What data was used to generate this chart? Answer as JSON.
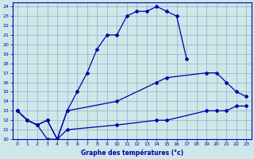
{
  "xlabel": "Graphe des températures (°c)",
  "bg_color": "#cce8e8",
  "grid_color": "#99aacc",
  "line_color": "#0000aa",
  "xlim": [
    -0.5,
    23.5
  ],
  "ylim": [
    10,
    24.4
  ],
  "xticks": [
    0,
    1,
    2,
    3,
    4,
    5,
    6,
    7,
    8,
    9,
    10,
    11,
    12,
    13,
    14,
    15,
    16,
    17,
    18,
    19,
    20,
    21,
    22,
    23
  ],
  "yticks": [
    10,
    11,
    12,
    13,
    14,
    15,
    16,
    17,
    18,
    19,
    20,
    21,
    22,
    23,
    24
  ],
  "line1_x": [
    0,
    1,
    2,
    3,
    4,
    5,
    6,
    7,
    8,
    9,
    10,
    11,
    12,
    13,
    14,
    15,
    16,
    17
  ],
  "line1_y": [
    13,
    12,
    11.5,
    10,
    10,
    13,
    15,
    17,
    19.5,
    21,
    21,
    23,
    23.5,
    23.5,
    24,
    23.5,
    23,
    18.5
  ],
  "line2_x": [
    0,
    1,
    2,
    3,
    4,
    5,
    10,
    14,
    15,
    19,
    20,
    21,
    22,
    23
  ],
  "line2_y": [
    13,
    12,
    11.5,
    12,
    10,
    13,
    14,
    16,
    16.5,
    17,
    17,
    16,
    15,
    14.5
  ],
  "line3_x": [
    0,
    1,
    2,
    3,
    4,
    5,
    10,
    14,
    15,
    19,
    20,
    21,
    22,
    23
  ],
  "line3_y": [
    13,
    12,
    11.5,
    12,
    10,
    11,
    11.5,
    12,
    12,
    13,
    13,
    13,
    13.5,
    13.5
  ]
}
